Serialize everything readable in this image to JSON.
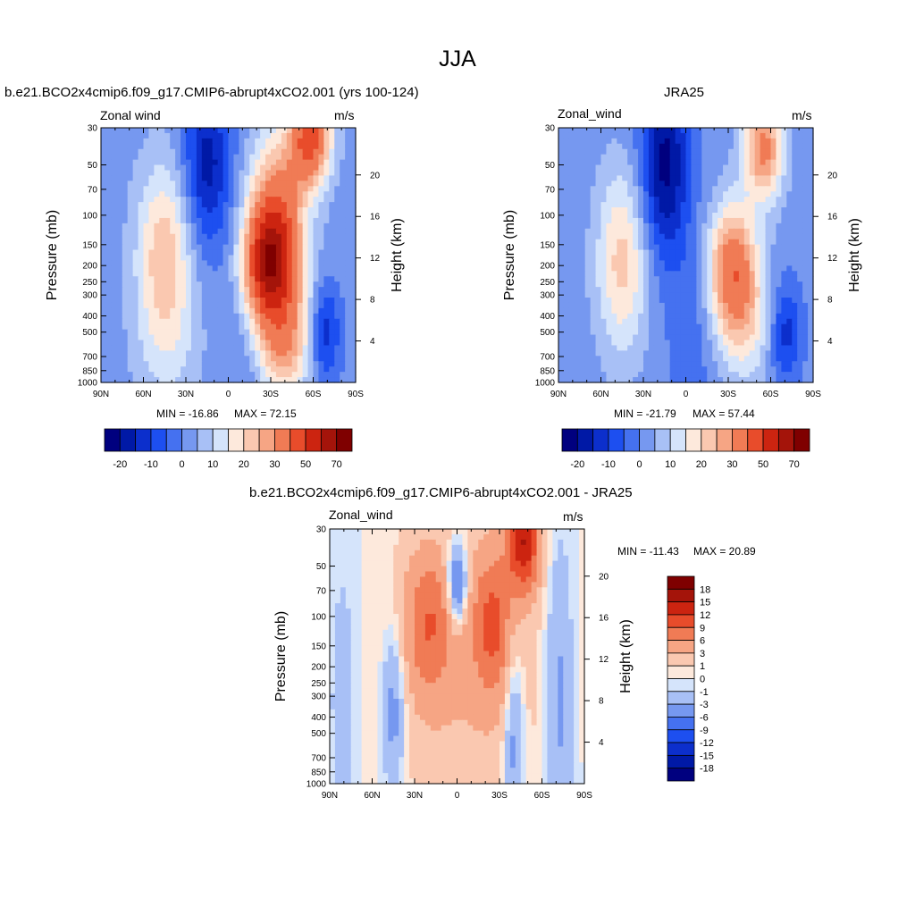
{
  "main_title": "JJA",
  "chart_data": [
    {
      "type": "heatmap",
      "id": "model",
      "title": "b.e21.BCO2x4cmip6.f09_g17.CMIP6-abrupt4xCO2.001 (yrs 100-124)",
      "left_label": "Zonal wind",
      "units": "m/s",
      "ylabel": "Pressure (mb)",
      "ylabel_right": "Height (km)",
      "x_ticks": [
        "90N",
        "60N",
        "30N",
        "0",
        "30S",
        "60S",
        "90S"
      ],
      "y_ticks": [
        "30",
        "50",
        "70",
        "100",
        "150",
        "200",
        "250",
        "300",
        "400",
        "500",
        "700",
        "850",
        "1000"
      ],
      "y_ticks_right": [
        "20",
        "16",
        "12",
        "8",
        "4"
      ],
      "min_label": "MIN = -16.86",
      "max_label": "MAX =  72.15",
      "levels": [
        -20,
        -15,
        -10,
        -5,
        0,
        5,
        10,
        15,
        20,
        25,
        30,
        40,
        50,
        60,
        70
      ],
      "level_labels": [
        "-20",
        "-10",
        "0",
        "10",
        "20",
        "30",
        "50",
        "70"
      ],
      "colors": [
        "#00007f",
        "#0019a6",
        "#0c2fcc",
        "#1d4ff0",
        "#4571f0",
        "#7698f0",
        "#a8c0f6",
        "#d5e4fb",
        "#fde9dc",
        "#fac8b0",
        "#f6a584",
        "#f07b55",
        "#e84c2b",
        "#cc2410",
        "#a4140a",
        "#7f0000"
      ],
      "features": [
        {
          "lat": -28,
          "p": 200,
          "v": 48,
          "sx": 12,
          "sy": 0.55
        },
        {
          "lat": -35,
          "p": 100,
          "v": 30,
          "sx": 14,
          "sy": 0.8
        },
        {
          "lat": -58,
          "p": 35,
          "v": 40,
          "sx": 10,
          "sy": 0.45
        },
        {
          "lat": -42,
          "p": 450,
          "v": 16,
          "sx": 16,
          "sy": 0.6
        },
        {
          "lat": -38,
          "p": 700,
          "v": 12,
          "sx": 12,
          "sy": 0.4
        },
        {
          "lat": -68,
          "p": 500,
          "v": -18,
          "sx": 8,
          "sy": 0.5
        },
        {
          "lat": 45,
          "p": 180,
          "v": 22,
          "sx": 14,
          "sy": 0.9
        },
        {
          "lat": 42,
          "p": 700,
          "v": 5,
          "sx": 18,
          "sy": 0.6
        },
        {
          "lat": 15,
          "p": 50,
          "v": -20,
          "sx": 12,
          "sy": 0.8
        },
        {
          "lat": -10,
          "p": 600,
          "v": -4,
          "sx": 12,
          "sy": 1.0
        }
      ],
      "base": 2.5
    },
    {
      "type": "heatmap",
      "id": "obs",
      "title": "JRA25",
      "left_label": "Zonal_wind",
      "units": "m/s",
      "ylabel": "Pressure (mb)",
      "ylabel_right": "Height (km)",
      "x_ticks": [
        "90N",
        "60N",
        "30N",
        "0",
        "30S",
        "60S",
        "90S"
      ],
      "y_ticks": [
        "30",
        "50",
        "70",
        "100",
        "150",
        "200",
        "250",
        "300",
        "400",
        "500",
        "700",
        "850",
        "1000"
      ],
      "y_ticks_right": [
        "20",
        "16",
        "12",
        "8",
        "4"
      ],
      "min_label": "MIN = -21.79",
      "max_label": "MAX =  57.44",
      "levels": [
        -20,
        -15,
        -10,
        -5,
        0,
        5,
        10,
        15,
        20,
        25,
        30,
        40,
        50,
        60,
        70
      ],
      "level_labels": [
        "-20",
        "-10",
        "0",
        "10",
        "20",
        "30",
        "50",
        "70"
      ],
      "colors": [
        "#00007f",
        "#0019a6",
        "#0c2fcc",
        "#1d4ff0",
        "#4571f0",
        "#7698f0",
        "#a8c0f6",
        "#d5e4fb",
        "#fde9dc",
        "#fac8b0",
        "#f6a584",
        "#f07b55",
        "#e84c2b",
        "#cc2410",
        "#a4140a",
        "#7f0000"
      ],
      "features": [
        {
          "lat": -33,
          "p": 200,
          "v": 33,
          "sx": 12,
          "sy": 0.6
        },
        {
          "lat": -55,
          "p": 40,
          "v": 30,
          "sx": 10,
          "sy": 0.5
        },
        {
          "lat": -42,
          "p": 450,
          "v": 14,
          "sx": 16,
          "sy": 0.6
        },
        {
          "lat": -70,
          "p": 500,
          "v": -16,
          "sx": 8,
          "sy": 0.5
        },
        {
          "lat": 45,
          "p": 190,
          "v": 20,
          "sx": 13,
          "sy": 0.9
        },
        {
          "lat": 15,
          "p": 50,
          "v": -24,
          "sx": 12,
          "sy": 0.9
        },
        {
          "lat": -5,
          "p": 500,
          "v": -6,
          "sx": 12,
          "sy": 1.0
        }
      ],
      "base": 2.0
    },
    {
      "type": "heatmap",
      "id": "diff",
      "title": "b.e21.BCO2x4cmip6.f09_g17.CMIP6-abrupt4xCO2.001 - JRA25",
      "left_label": "Zonal_wind",
      "units": "m/s",
      "ylabel": "Pressure (mb)",
      "ylabel_right": "Height (km)",
      "x_ticks": [
        "90N",
        "60N",
        "30N",
        "0",
        "30S",
        "60S",
        "90S"
      ],
      "y_ticks": [
        "30",
        "50",
        "70",
        "100",
        "150",
        "200",
        "250",
        "300",
        "400",
        "500",
        "700",
        "850",
        "1000"
      ],
      "y_ticks_right": [
        "20",
        "16",
        "12",
        "8",
        "4"
      ],
      "min_label": "MIN = -11.43",
      "max_label": "MAX =  20.89",
      "levels": [
        -18,
        -15,
        -12,
        -9,
        -6,
        -3,
        -1,
        0,
        1,
        3,
        6,
        9,
        12,
        15,
        18
      ],
      "level_labels": [
        "18",
        "15",
        "12",
        "9",
        "6",
        "3",
        "1",
        "0",
        "-1",
        "-3",
        "-6",
        "-9",
        "-12",
        "-15",
        "-18"
      ],
      "colors": [
        "#00007f",
        "#0019a6",
        "#0c2fcc",
        "#1d4ff0",
        "#4571f0",
        "#7698f0",
        "#a8c0f6",
        "#d5e4fb",
        "#fde9dc",
        "#fac8b0",
        "#f6a584",
        "#f07b55",
        "#e84c2b",
        "#cc2410",
        "#a4140a",
        "#7f0000"
      ],
      "features": [
        {
          "lat": -47,
          "p": 35,
          "v": 14,
          "sx": 8,
          "sy": 0.5
        },
        {
          "lat": -25,
          "p": 110,
          "v": 8,
          "sx": 10,
          "sy": 0.7
        },
        {
          "lat": 20,
          "p": 110,
          "v": 7,
          "sx": 12,
          "sy": 0.7
        },
        {
          "lat": -5,
          "p": 200,
          "v": 3,
          "sx": 40,
          "sy": 1.5
        },
        {
          "lat": 0,
          "p": 65,
          "v": -9,
          "sx": 5,
          "sy": 0.4
        },
        {
          "lat": 45,
          "p": 350,
          "v": -5,
          "sx": 6,
          "sy": 0.8
        },
        {
          "lat": -40,
          "p": 500,
          "v": -5,
          "sx": 5,
          "sy": 1.0
        },
        {
          "lat": -72,
          "p": 300,
          "v": -4,
          "sx": 7,
          "sy": 1.5
        },
        {
          "lat": 80,
          "p": 300,
          "v": -2,
          "sx": 8,
          "sy": 1.5
        }
      ],
      "base": 0.0
    }
  ]
}
